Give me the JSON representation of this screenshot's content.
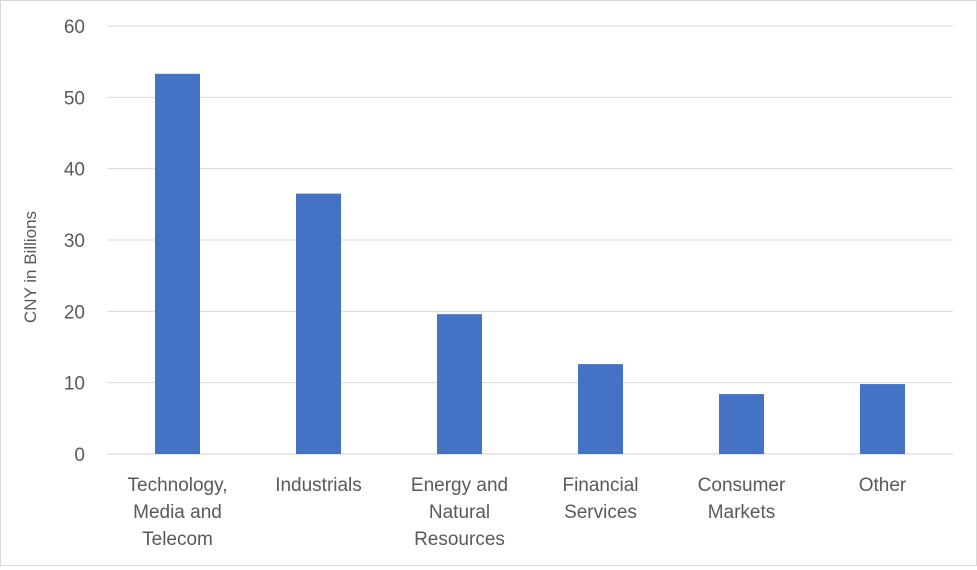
{
  "chart_data": {
    "type": "bar",
    "categories": [
      [
        "Technology,",
        "Media and",
        "Telecom"
      ],
      [
        "Industrials"
      ],
      [
        "Energy and",
        "Natural",
        "Resources"
      ],
      [
        "Financial",
        "Services"
      ],
      [
        "Consumer",
        "Markets"
      ],
      [
        "Other"
      ]
    ],
    "values": [
      53.3,
      36.5,
      19.6,
      12.6,
      8.4,
      9.8
    ],
    "title": "",
    "xlabel": "",
    "ylabel": "CNY in Billions",
    "ylim": [
      0,
      60
    ],
    "yticks": [
      "0",
      "10",
      "20",
      "30",
      "40",
      "50",
      "60"
    ],
    "grid": true,
    "legend": "none",
    "bar_color": "#4472c4"
  }
}
